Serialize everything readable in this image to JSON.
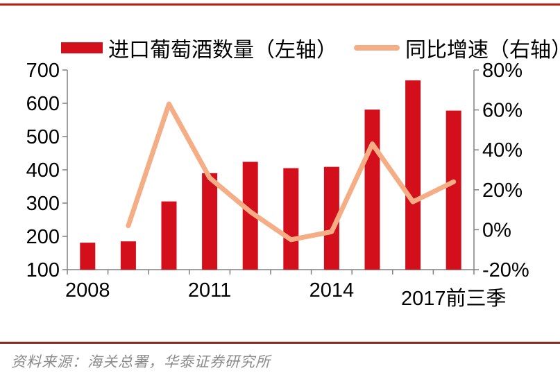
{
  "legend": {
    "bar_label": "进口葡萄酒数量（左轴）",
    "line_label": "同比增速（右轴）"
  },
  "source_note": {
    "text": "资料来源：海关总署，华泰证券研究所"
  },
  "colors": {
    "top_rule": "#C41A0B",
    "bottom_rule": "#8B2A21",
    "axis": "#808080",
    "bar": "#D20F1B",
    "line": "#F5AD85",
    "label_text": "#000000",
    "source_text": "#8A8A8A"
  },
  "chart_data": {
    "type": "bar",
    "subtype": "combo-bar-line-dual-axis",
    "title": "",
    "categories": [
      "2008",
      "2009",
      "2010",
      "2011",
      "2012",
      "2013",
      "2014",
      "2015",
      "2016",
      "2017前三季"
    ],
    "series": [
      {
        "name": "进口葡萄酒数量（左轴）",
        "render": "bar",
        "axis": "left",
        "color": "#D20F1B",
        "values": [
          181,
          185,
          305,
          390,
          424,
          405,
          409,
          581,
          669,
          578
        ]
      },
      {
        "name": "同比增速（右轴）",
        "render": "line",
        "axis": "right",
        "color": "#F5AD85",
        "values": [
          null,
          2,
          63,
          26,
          9,
          -5,
          -1,
          43,
          14,
          24
        ]
      }
    ],
    "left_axis": {
      "min": 100,
      "max": 700,
      "ticks": [
        100,
        200,
        300,
        400,
        500,
        600,
        700
      ]
    },
    "right_axis": {
      "min": -20,
      "max": 80,
      "ticks": [
        -20,
        0,
        20,
        40,
        60,
        80
      ],
      "labels": [
        "-20%",
        "0%",
        "20%",
        "40%",
        "60%",
        "80%"
      ]
    },
    "x_ticks": [
      {
        "index": 0,
        "label": "2008"
      },
      {
        "index": 3,
        "label": "2011"
      },
      {
        "index": 6,
        "label": "2014"
      },
      {
        "index": 9,
        "label": "2017前三季"
      }
    ],
    "grid": false,
    "legend_position": "top"
  }
}
